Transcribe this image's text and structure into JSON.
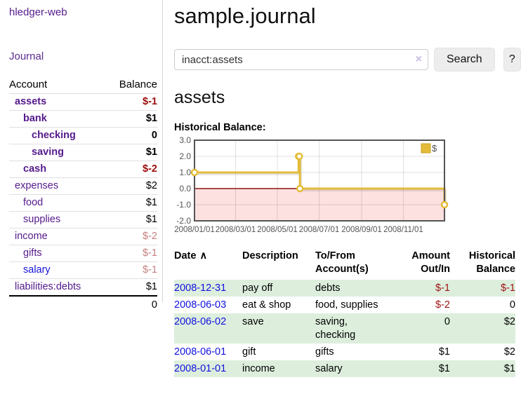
{
  "sidebar": {
    "brand": "hledger-web",
    "nav": {
      "journal": "Journal"
    },
    "table": {
      "headers": {
        "account": "Account",
        "balance": "Balance"
      },
      "accounts": [
        {
          "label": "assets",
          "balance": "$-1"
        },
        {
          "label": "bank",
          "balance": "$1"
        },
        {
          "label": "checking",
          "balance": "0"
        },
        {
          "label": "saving",
          "balance": "$1"
        },
        {
          "label": "cash",
          "balance": "$-2"
        },
        {
          "label": "expenses",
          "balance": "$2"
        },
        {
          "label": "food",
          "balance": "$1"
        },
        {
          "label": "supplies",
          "balance": "$1"
        },
        {
          "label": "income",
          "balance": "$-2"
        },
        {
          "label": "gifts",
          "balance": "$-1"
        },
        {
          "label": "salary",
          "balance": "$-1"
        },
        {
          "label": "liabilities:debts",
          "balance": "$1"
        }
      ],
      "total": "0"
    }
  },
  "header": {
    "title": "sample.journal"
  },
  "search": {
    "value": "inacct:assets",
    "clear_icon": "×",
    "button_label": "Search",
    "help_label": "?"
  },
  "page": {
    "heading": "assets",
    "chart_label": "Historical Balance:"
  },
  "chart_data": {
    "type": "line",
    "title": "Historical Balance",
    "step": "after",
    "series": [
      {
        "name": "$",
        "points": [
          {
            "date": "2008-01-01",
            "value": 1
          },
          {
            "date": "2008-06-01",
            "value": 2
          },
          {
            "date": "2008-06-02",
            "value": 2
          },
          {
            "date": "2008-06-03",
            "value": 0
          },
          {
            "date": "2008-12-31",
            "value": -1
          }
        ]
      }
    ],
    "x_domain": [
      "2008-01-01",
      "2008-12-31"
    ],
    "ylim": [
      -2,
      3
    ],
    "y_ticks": [
      {
        "v": 3,
        "label": "3.0"
      },
      {
        "v": 2,
        "label": "2.0"
      },
      {
        "v": 1,
        "label": "1.0"
      },
      {
        "v": 0,
        "label": "0.0"
      },
      {
        "v": -1,
        "label": "-1.0"
      },
      {
        "v": -2,
        "label": "-2.0"
      }
    ],
    "x_ticks": [
      {
        "date": "2008-01-01",
        "label": "2008/01/01"
      },
      {
        "date": "2008-03-01",
        "label": "2008/03/01"
      },
      {
        "date": "2008-05-01",
        "label": "2008/05/01"
      },
      {
        "date": "2008-07-01",
        "label": "2008/07/01"
      },
      {
        "date": "2008-09-01",
        "label": "2008/09/01"
      },
      {
        "date": "2008-11-01",
        "label": "2008/11/01"
      }
    ],
    "legend": {
      "position": "top-right",
      "label": "$"
    },
    "grid": true,
    "colors": {
      "line": "#e3bc39",
      "point_fill": "#ffffff",
      "negative_zone": "#fde0e0",
      "zero_line": "#8f1010",
      "border": "#545454",
      "grid": "rgba(0,0,0,0.12)",
      "tick_text": "#545454",
      "legend_border": "#c9a21c"
    }
  },
  "transactions": {
    "headers": {
      "date": "Date",
      "sort_indicator": "∧",
      "description": "Description",
      "account": "To/From\nAccount(s)",
      "amount": "Amount\nOut/In",
      "balance": "Historical\nBalance"
    },
    "rows": [
      {
        "date": "2008-12-31",
        "description": "pay off",
        "account": "debts",
        "amount": "$-1",
        "balance": "$-1"
      },
      {
        "date": "2008-06-03",
        "description": "eat & shop",
        "account": "food, supplies",
        "amount": "$-2",
        "balance": "0"
      },
      {
        "date": "2008-06-02",
        "description": "save",
        "account": "saving,\nchecking",
        "amount": "0",
        "balance": "$2"
      },
      {
        "date": "2008-06-01",
        "description": "gift",
        "account": "gifts",
        "amount": "$1",
        "balance": "$2"
      },
      {
        "date": "2008-01-01",
        "description": "income",
        "account": "salary",
        "amount": "$1",
        "balance": "$1"
      }
    ]
  }
}
